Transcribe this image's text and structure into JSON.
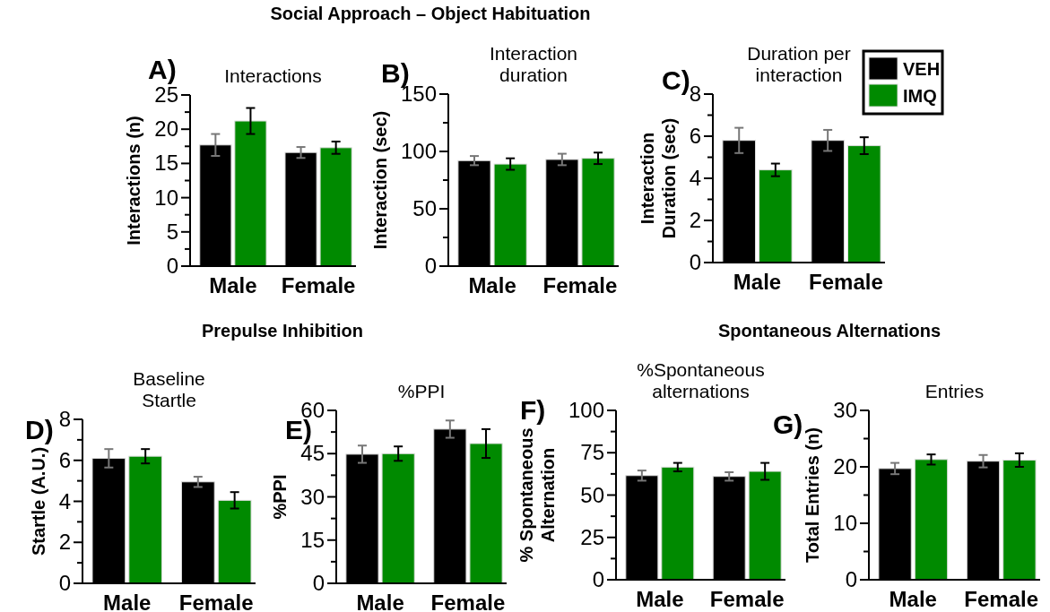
{
  "chart_data": [
    {
      "type": "bar",
      "title": "Interactions",
      "ylabel": "Interactions (n)",
      "annotations": [
        "A)",
        "Social Approach – Object Habituation"
      ],
      "categories": [
        "Male",
        "Female"
      ],
      "ylim": [
        0,
        25
      ],
      "yticks": [
        0,
        {
          "value": 2.5,
          "label": null
        },
        5,
        {
          "value": 7.5,
          "label": null
        },
        10,
        {
          "value": 12.5,
          "label": null
        },
        15,
        {
          "value": 17.5,
          "label": null
        },
        20,
        {
          "value": 22.5,
          "label": null
        },
        25
      ],
      "legend": false,
      "series": [
        {
          "color": "#000000",
          "values": [
            17.7,
            16.6
          ],
          "errors": [
            1.6,
            0.8
          ]
        },
        {
          "color": "#008a00",
          "values": [
            21.2,
            17.3
          ],
          "errors": [
            1.9,
            0.9
          ]
        }
      ]
    },
    {
      "type": "bar",
      "title": "Interaction\nduration",
      "ylabel": "Interaction (sec)",
      "annotations": [
        "B)"
      ],
      "categories": [
        "Male",
        "Female"
      ],
      "ylim": [
        0,
        150
      ],
      "yticks": [
        0,
        {
          "value": 25,
          "label": null
        },
        50,
        {
          "value": 75,
          "label": null
        },
        100,
        {
          "value": 125,
          "label": null
        },
        150
      ],
      "legend": false,
      "series": [
        {
          "color": "#000000",
          "values": [
            92,
            93
          ],
          "errors": [
            4,
            5
          ]
        },
        {
          "color": "#008a00",
          "values": [
            89,
            94
          ],
          "errors": [
            5,
            5
          ]
        }
      ]
    },
    {
      "type": "bar",
      "title": "Duration per\ninteraction",
      "ylabel": "Interaction\nDuration (sec)",
      "annotations": [
        "C)"
      ],
      "categories": [
        "Male",
        "Female"
      ],
      "ylim": [
        0,
        8
      ],
      "yticks": [
        0,
        {
          "value": 1,
          "label": null
        },
        2,
        {
          "value": 3,
          "label": null
        },
        4,
        {
          "value": 5,
          "label": null
        },
        6,
        {
          "value": 7,
          "label": null
        },
        8
      ],
      "legend": "top right",
      "series": [
        {
          "name": "VEH",
          "color": "#000000",
          "values": [
            5.8,
            5.8
          ],
          "errors": [
            0.6,
            0.5
          ]
        },
        {
          "name": "IMQ",
          "color": "#008a00",
          "values": [
            4.4,
            5.55
          ],
          "errors": [
            0.3,
            0.4
          ]
        }
      ]
    },
    {
      "type": "bar",
      "title": "Baseline\nStartle",
      "ylabel": "Startle (A.U.)",
      "annotations": [
        "D)",
        "Prepulse Inhibition"
      ],
      "categories": [
        "Male",
        "Female"
      ],
      "ylim": [
        0,
        8
      ],
      "yticks": [
        0,
        {
          "value": 1,
          "label": null
        },
        2,
        {
          "value": 3,
          "label": null
        },
        4,
        {
          "value": 5,
          "label": null
        },
        6,
        {
          "value": 7,
          "label": null
        },
        8
      ],
      "legend": false,
      "series": [
        {
          "color": "#000000",
          "values": [
            6.1,
            4.95
          ],
          "errors": [
            0.45,
            0.25
          ]
        },
        {
          "color": "#008a00",
          "values": [
            6.2,
            4.05
          ],
          "errors": [
            0.35,
            0.4
          ]
        }
      ]
    },
    {
      "type": "bar",
      "title": "%PPI",
      "ylabel": "%PPI",
      "annotations": [
        "E)"
      ],
      "categories": [
        "Male",
        "Female"
      ],
      "ylim": [
        0,
        60
      ],
      "yticks": [
        0,
        {
          "value": 7.5,
          "label": null
        },
        15,
        {
          "value": 22.5,
          "label": null
        },
        30,
        {
          "value": 37.5,
          "label": null
        },
        45,
        {
          "value": 52.5,
          "label": null
        },
        60
      ],
      "legend": false,
      "series": [
        {
          "color": "#000000",
          "values": [
            44.8,
            53.5
          ],
          "errors": [
            3,
            3
          ]
        },
        {
          "color": "#008a00",
          "values": [
            45,
            48.5
          ],
          "errors": [
            2.5,
            5
          ]
        }
      ]
    },
    {
      "type": "bar",
      "title": "%Spontaneous\nalternations",
      "ylabel": "% Spontaneous\nAlternation",
      "annotations": [
        "F)",
        "Spontaneous Alternations"
      ],
      "categories": [
        "Male",
        "Female"
      ],
      "ylim": [
        0,
        100
      ],
      "yticks": [
        0,
        {
          "value": 12.5,
          "label": null
        },
        25,
        {
          "value": 37.5,
          "label": null
        },
        50,
        {
          "value": 62.5,
          "label": null
        },
        75,
        {
          "value": 87.5,
          "label": null
        },
        100
      ],
      "legend": false,
      "series": [
        {
          "color": "#000000",
          "values": [
            61.5,
            61
          ],
          "errors": [
            3,
            2.5
          ]
        },
        {
          "color": "#008a00",
          "values": [
            66.5,
            64
          ],
          "errors": [
            2.5,
            5
          ]
        }
      ]
    },
    {
      "type": "bar",
      "title": "Entries",
      "ylabel": "Total Entries (n)",
      "annotations": [
        "G)"
      ],
      "categories": [
        "Male",
        "Female"
      ],
      "ylim": [
        0,
        30
      ],
      "yticks": [
        0,
        {
          "value": 5,
          "label": null
        },
        10,
        {
          "value": 15,
          "label": null
        },
        20,
        {
          "value": 25,
          "label": null
        },
        30
      ],
      "legend": false,
      "series": [
        {
          "color": "#000000",
          "values": [
            19.7,
            21
          ],
          "errors": [
            1,
            1.1
          ]
        },
        {
          "color": "#008a00",
          "values": [
            21.3,
            21.2
          ],
          "errors": [
            0.9,
            1.2
          ]
        }
      ]
    }
  ]
}
